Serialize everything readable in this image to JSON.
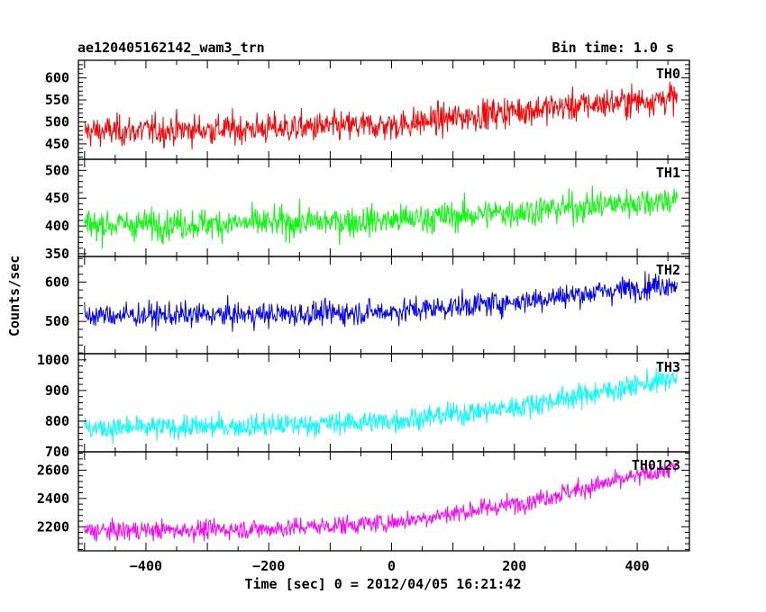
{
  "chart_data": {
    "type": "line",
    "title": "ae120405162142_wam3_trn",
    "bin_label": "Bin time: 1.0 s",
    "xlabel": "Time [sec] 0 = 2012/04/05 16:21:42",
    "ylabel": "Counts/sec",
    "xlim": [
      -510,
      485
    ],
    "x_ticks": [
      -400,
      -200,
      0,
      200,
      400
    ],
    "x_tick_labels": [
      "−400",
      "−200",
      "0",
      "200",
      "400"
    ],
    "x_range": [
      -500,
      465
    ],
    "panels": [
      {
        "name": "TH0",
        "color": "#ff0000",
        "ylim": [
          415,
          640
        ],
        "ticks": [
          450,
          500,
          550,
          600
        ],
        "trend": [
          [
            -500,
            478
          ],
          [
            -200,
            485
          ],
          [
            0,
            492
          ],
          [
            200,
            525
          ],
          [
            465,
            555
          ]
        ],
        "noise": 28
      },
      {
        "name": "TH1",
        "color": "#00ff00",
        "ylim": [
          345,
          520
        ],
        "ticks": [
          350,
          400,
          450,
          500
        ],
        "trend": [
          [
            -500,
            402
          ],
          [
            -200,
            405
          ],
          [
            0,
            410
          ],
          [
            200,
            425
          ],
          [
            465,
            448
          ]
        ],
        "noise": 22
      },
      {
        "name": "TH2",
        "color": "#0000ff",
        "ylim": [
          418,
          665
        ],
        "ticks": [
          500,
          600
        ],
        "trend": [
          [
            -500,
            515
          ],
          [
            -200,
            517
          ],
          [
            0,
            525
          ],
          [
            200,
            550
          ],
          [
            465,
            598
          ]
        ],
        "noise": 25
      },
      {
        "name": "TH3",
        "color": "#00ffff",
        "ylim": [
          700,
          1020
        ],
        "ticks": [
          700,
          800,
          900,
          1000
        ],
        "trend": [
          [
            -500,
            775
          ],
          [
            -200,
            785
          ],
          [
            0,
            800
          ],
          [
            200,
            845
          ],
          [
            465,
            940
          ]
        ],
        "noise": 30
      },
      {
        "name": "TH0123",
        "color": "#ff00ff",
        "ylim": [
          2030,
          2730
        ],
        "ticks": [
          2200,
          2400,
          2600
        ],
        "trend": [
          [
            -500,
            2170
          ],
          [
            -200,
            2185
          ],
          [
            0,
            2230
          ],
          [
            200,
            2360
          ],
          [
            465,
            2620
          ]
        ],
        "noise": 55
      }
    ]
  }
}
